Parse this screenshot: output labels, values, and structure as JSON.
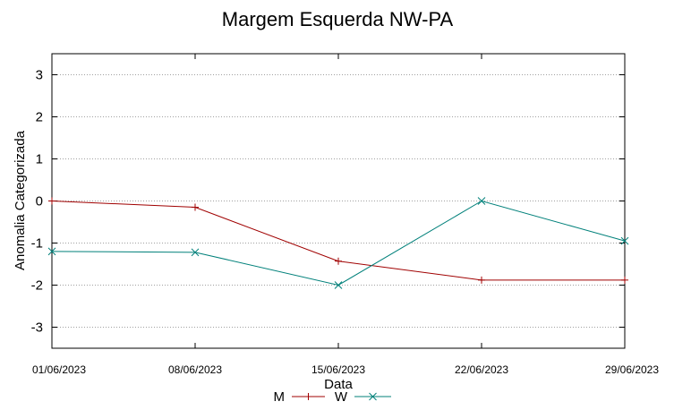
{
  "chart_data": {
    "type": "line",
    "title": "Margem Esquerda NW-PA",
    "xlabel": "Data",
    "ylabel": "Anomalia Categorizada",
    "categories": [
      "01/06/2023",
      "08/06/2023",
      "15/06/2023",
      "22/06/2023",
      "29/06/2023"
    ],
    "ylim": [
      -3.5,
      3.5
    ],
    "yticks": [
      3,
      2,
      1,
      0,
      -1,
      -2,
      -3
    ],
    "grid": true,
    "legend_position": "bottom-center",
    "series": [
      {
        "name": "M",
        "color": "#a00000",
        "marker": "plus",
        "values": [
          0,
          -0.15,
          -1.43,
          -1.88,
          -1.88
        ]
      },
      {
        "name": "W",
        "color": "#00807a",
        "marker": "cross",
        "values": [
          -1.2,
          -1.22,
          -2.0,
          0,
          -0.95
        ]
      }
    ]
  }
}
